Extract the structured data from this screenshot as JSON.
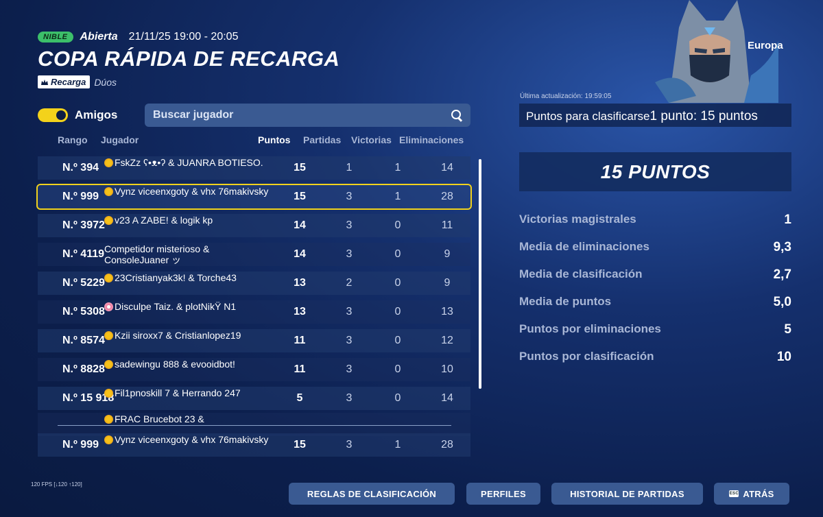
{
  "header": {
    "org_badge": "NIBLE",
    "status": "Abierta",
    "datetime": "21/11/25 19:00 - 20:05",
    "title": "COPA RÁPIDA DE RECARGA",
    "mode_badge": "Recarga",
    "team_size": "Dúos"
  },
  "region": "Europa",
  "filters": {
    "friends_label": "Amigos",
    "friends_on": true,
    "search_placeholder": "Buscar jugador"
  },
  "columns": {
    "rank": "Rango",
    "player": "Jugador",
    "points": "Puntos",
    "games": "Partidas",
    "wins": "Victorias",
    "elims": "Eliminaciones"
  },
  "rows": [
    {
      "rank": "N.º 394",
      "player": "FskZz ʕ•ᴥ•ʔ & JUANRA BOTIESO.",
      "flag1": "es",
      "flag2": "co",
      "points": "15",
      "games": "1",
      "wins": "1",
      "elims": "14"
    },
    {
      "rank": "N.º 999",
      "player": "Vynz viceenxgoty & vhx 76makivsky",
      "flag1": "es",
      "points": "15",
      "games": "3",
      "wins": "1",
      "elims": "28"
    },
    {
      "rank": "N.º 3972",
      "player": "v23 A ZABE! & logik kp",
      "flag1": "es",
      "flag2": "es",
      "points": "14",
      "games": "3",
      "wins": "0",
      "elims": "11"
    },
    {
      "rank": "N.º 4119",
      "player": "Competidor misterioso & ConsoleJuaner ッ",
      "flag2": "es",
      "points": "14",
      "games": "3",
      "wins": "0",
      "elims": "9"
    },
    {
      "rank": "N.º 5229",
      "player": "23Cristianyak3k! & Torche43",
      "flag1": "es",
      "flag2": "es",
      "points": "13",
      "games": "2",
      "wins": "0",
      "elims": "9"
    },
    {
      "rank": "N.º 5308",
      "player": "Disculpe Taiz. & plotNikŸ N1",
      "flag1": "fl",
      "flag2": "es",
      "points": "13",
      "games": "3",
      "wins": "0",
      "elims": "13"
    },
    {
      "rank": "N.º 8574",
      "player": "Kzii siroxx7 & Cristianlopez19",
      "flag1": "es",
      "flag2": "de",
      "points": "11",
      "games": "3",
      "wins": "0",
      "elims": "12"
    },
    {
      "rank": "N.º 8828",
      "player": "sadewingu 888 & evooidbot!",
      "flag1": "es",
      "flag2": "se",
      "points": "11",
      "games": "3",
      "wins": "0",
      "elims": "10"
    },
    {
      "rank": "N.º 15 918",
      "player": "Fil1pnoskill 7 & Herrando 247",
      "flag1": "es",
      "flag2": "es",
      "points": "5",
      "games": "3",
      "wins": "0",
      "elims": "14"
    },
    {
      "rank": "",
      "player": "FRAC Brucebot 23 &",
      "flag1": "es",
      "flag2": "es",
      "points": "",
      "games": "",
      "wins": "",
      "elims": ""
    }
  ],
  "my_row": {
    "rank": "N.º 999",
    "player": "Vynz viceenxgoty & vhx 76makivsky",
    "flag1": "es",
    "points": "15",
    "games": "3",
    "wins": "1",
    "elims": "28"
  },
  "panel": {
    "last_update": "Última actualización: 19:59:05",
    "qualify_label": "Puntos para clasificarse",
    "qualify_value": "1 punto: 15 puntos",
    "total_points": "15 PUNTOS",
    "stats": [
      {
        "label": "Victorias magistrales",
        "value": "1"
      },
      {
        "label": "Media de eliminaciones",
        "value": "9,3"
      },
      {
        "label": "Media de clasificación",
        "value": "2,7"
      },
      {
        "label": "Media de puntos",
        "value": "5,0"
      },
      {
        "label": "Puntos por eliminaciones",
        "value": "5"
      },
      {
        "label": "Puntos por clasificación",
        "value": "10"
      }
    ]
  },
  "footer": {
    "fps": "120 FPS [↓120 ↑120]",
    "buttons": {
      "rules": "REGLAS DE CLASIFICACIÓN",
      "profiles": "PERFILES",
      "history": "HISTORIAL DE PARTIDAS",
      "back": "ATRÁS"
    },
    "back_key": "ESC"
  }
}
